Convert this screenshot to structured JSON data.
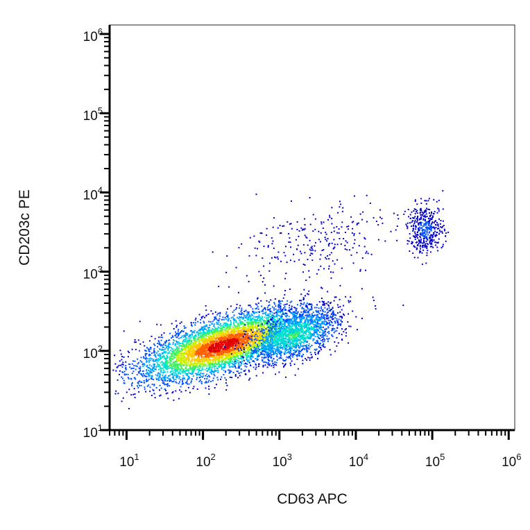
{
  "chart_data": {
    "type": "scatter",
    "subtype": "flow-cytometry density dot plot",
    "xlabel": "CD63 APC",
    "ylabel": "CD203c PE",
    "x_scale": "log",
    "y_scale": "log",
    "xlim": [
      6,
      1200000
    ],
    "ylim": [
      10,
      1300000
    ],
    "x_ticks": [
      {
        "base": "10",
        "exp": "1",
        "value": 10
      },
      {
        "base": "10",
        "exp": "2",
        "value": 100
      },
      {
        "base": "10",
        "exp": "3",
        "value": 1000
      },
      {
        "base": "10",
        "exp": "4",
        "value": 10000
      },
      {
        "base": "10",
        "exp": "5",
        "value": 100000
      },
      {
        "base": "10",
        "exp": "6",
        "value": 1000000
      }
    ],
    "y_ticks": [
      {
        "base": "10",
        "exp": "1",
        "value": 10
      },
      {
        "base": "10",
        "exp": "2",
        "value": 100
      },
      {
        "base": "10",
        "exp": "3",
        "value": 1000
      },
      {
        "base": "10",
        "exp": "4",
        "value": 10000
      },
      {
        "base": "10",
        "exp": "5",
        "value": 100000
      },
      {
        "base": "10",
        "exp": "6",
        "value": 1000000
      }
    ],
    "grid": false,
    "legend": "none",
    "colormap": [
      "#0000c8",
      "#0050ff",
      "#00a0ff",
      "#00e0d0",
      "#40f060",
      "#c8f000",
      "#ffc800",
      "#ff6000",
      "#e00000"
    ],
    "populations": [
      {
        "cx": 180,
        "cy": 120,
        "spread_x_decades": 0.55,
        "spread_y_decades": 0.17,
        "tilt": 0.28,
        "density": "high"
      },
      {
        "cx": 1500,
        "cy": 160,
        "spread_x_decades": 0.3,
        "spread_y_decades": 0.15,
        "tilt": 0.3,
        "density": "medium"
      },
      {
        "cx": 80000,
        "cy": 3500,
        "spread_x_decades": 0.12,
        "spread_y_decades": 0.15,
        "tilt": 0,
        "density": "low"
      },
      {
        "cx": 3000,
        "cy": 2500,
        "spread_x_decades": 0.5,
        "spread_y_decades": 0.25,
        "tilt": 0.2,
        "density": "sparse"
      }
    ]
  }
}
